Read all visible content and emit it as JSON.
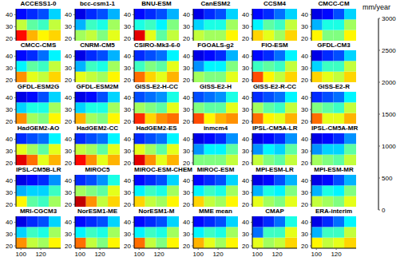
{
  "chart_data": {
    "type": "heatmap",
    "xlim": [
      95,
      140
    ],
    "ylim": [
      18,
      45
    ],
    "xticks": [
      100,
      120
    ],
    "yticks": [
      20,
      30,
      40
    ],
    "x_edges": [
      95,
      106,
      117,
      128,
      140
    ],
    "y_edges": [
      18,
      27,
      36,
      45
    ],
    "colorbar": {
      "label": "mm/year",
      "range": [
        0,
        3000
      ],
      "ticks": [
        0,
        500,
        1000,
        1500,
        2000,
        2500,
        3000
      ]
    },
    "panels": [
      {
        "title": "ACCESS1-0",
        "cells": [
          [
            2600,
            2100,
            1900,
            2000
          ],
          [
            1700,
            1400,
            1300,
            1700
          ],
          [
            400,
            500,
            600,
            1000
          ]
        ]
      },
      {
        "title": "bcc-csm1-1",
        "cells": [
          [
            1600,
            1700,
            1500,
            1800
          ],
          [
            900,
            1300,
            1200,
            1600
          ],
          [
            300,
            500,
            600,
            900
          ]
        ]
      },
      {
        "title": "BNU-ESM",
        "cells": [
          [
            2700,
            1800,
            1400,
            1700
          ],
          [
            1200,
            1300,
            1100,
            1500
          ],
          [
            400,
            500,
            600,
            900
          ]
        ]
      },
      {
        "title": "CanESM2",
        "cells": [
          [
            1700,
            1600,
            1600,
            1900
          ],
          [
            1000,
            1200,
            1200,
            1600
          ],
          [
            300,
            500,
            600,
            1000
          ]
        ]
      },
      {
        "title": "CCSM4",
        "cells": [
          [
            2000,
            1800,
            1600,
            2000
          ],
          [
            1100,
            1400,
            1300,
            1700
          ],
          [
            400,
            500,
            700,
            1000
          ]
        ]
      },
      {
        "title": "CMCC-CM",
        "cells": [
          [
            1900,
            1500,
            1500,
            1900
          ],
          [
            900,
            1200,
            1200,
            1600
          ],
          [
            300,
            400,
            600,
            1000
          ]
        ]
      },
      {
        "title": "CMCC-CMS",
        "cells": [
          [
            2200,
            1800,
            1700,
            2000
          ],
          [
            1100,
            1400,
            1300,
            1700
          ],
          [
            400,
            500,
            700,
            1100
          ]
        ]
      },
      {
        "title": "CNRM-CM5",
        "cells": [
          [
            1800,
            1700,
            1600,
            1900
          ],
          [
            900,
            1300,
            1200,
            1600
          ],
          [
            300,
            500,
            600,
            900
          ]
        ]
      },
      {
        "title": "CSIRO-Mk3-6-0",
        "cells": [
          [
            2300,
            2000,
            1800,
            2100
          ],
          [
            1300,
            1500,
            1400,
            1800
          ],
          [
            500,
            600,
            700,
            1100
          ]
        ]
      },
      {
        "title": "FGOALS-g2",
        "cells": [
          [
            1600,
            1500,
            1500,
            1800
          ],
          [
            800,
            1100,
            1100,
            1500
          ],
          [
            300,
            400,
            500,
            900
          ]
        ]
      },
      {
        "title": "FIO-ESM",
        "cells": [
          [
            2400,
            1900,
            1700,
            2000
          ],
          [
            1300,
            1400,
            1300,
            1700
          ],
          [
            400,
            500,
            700,
            1100
          ]
        ]
      },
      {
        "title": "GFDL-CM3",
        "cells": [
          [
            2000,
            1800,
            1700,
            2000
          ],
          [
            1000,
            1300,
            1300,
            1700
          ],
          [
            300,
            500,
            600,
            1000
          ]
        ]
      },
      {
        "title": "GFDL-ESM2G",
        "cells": [
          [
            2200,
            1600,
            1500,
            1900
          ],
          [
            1000,
            1200,
            1200,
            1600
          ],
          [
            300,
            400,
            600,
            1000
          ]
        ]
      },
      {
        "title": "GFDL-ESM2M",
        "cells": [
          [
            2100,
            1600,
            1500,
            1900
          ],
          [
            1000,
            1200,
            1200,
            1600
          ],
          [
            300,
            400,
            600,
            1000
          ]
        ]
      },
      {
        "title": "GISS-E2-H-CC",
        "cells": [
          [
            2500,
            2000,
            2200,
            2300
          ],
          [
            1600,
            1500,
            1400,
            1800
          ],
          [
            600,
            700,
            800,
            1200
          ]
        ]
      },
      {
        "title": "GISS-E2-H",
        "cells": [
          [
            2400,
            1900,
            2100,
            2200
          ],
          [
            1500,
            1400,
            1400,
            1800
          ],
          [
            600,
            700,
            800,
            1200
          ]
        ]
      },
      {
        "title": "GISS-E2-R-CC",
        "cells": [
          [
            2300,
            1900,
            1800,
            2100
          ],
          [
            1600,
            1400,
            1300,
            1700
          ],
          [
            500,
            600,
            700,
            1100
          ]
        ]
      },
      {
        "title": "GISS-E2-R",
        "cells": [
          [
            2300,
            1800,
            1800,
            2100
          ],
          [
            1500,
            1400,
            1300,
            1700
          ],
          [
            500,
            600,
            700,
            1100
          ]
        ]
      },
      {
        "title": "HadGEM2-AO",
        "cells": [
          [
            2700,
            2300,
            1800,
            2100
          ],
          [
            1800,
            1600,
            1400,
            1800
          ],
          [
            500,
            600,
            700,
            1100
          ]
        ]
      },
      {
        "title": "HadGEM2-CC",
        "cells": [
          [
            2600,
            2200,
            1800,
            2100
          ],
          [
            1700,
            1600,
            1400,
            1800
          ],
          [
            500,
            600,
            700,
            1100
          ]
        ]
      },
      {
        "title": "HadGEM2-ES",
        "cells": [
          [
            2700,
            2200,
            1800,
            2100
          ],
          [
            1800,
            1600,
            1400,
            1800
          ],
          [
            500,
            600,
            700,
            1100
          ]
        ]
      },
      {
        "title": "inmcm4",
        "cells": [
          [
            1500,
            1500,
            1500,
            1700
          ],
          [
            800,
            1100,
            1100,
            1400
          ],
          [
            300,
            400,
            500,
            800
          ]
        ]
      },
      {
        "title": "IPSL-CM5A-LR",
        "cells": [
          [
            1700,
            1500,
            1400,
            1700
          ],
          [
            800,
            1100,
            1000,
            1400
          ],
          [
            300,
            400,
            500,
            800
          ]
        ]
      },
      {
        "title": "IPSL-CM5A-MR",
        "cells": [
          [
            1600,
            1500,
            1400,
            1700
          ],
          [
            800,
            1000,
            1000,
            1400
          ],
          [
            300,
            400,
            500,
            800
          ]
        ]
      },
      {
        "title": "IPSL-CM5B-LR",
        "cells": [
          [
            1900,
            1400,
            1300,
            1600
          ],
          [
            900,
            1000,
            1000,
            1300
          ],
          [
            300,
            400,
            500,
            800
          ]
        ]
      },
      {
        "title": "MIROC5",
        "cells": [
          [
            2800,
            2200,
            1700,
            2000
          ],
          [
            1600,
            1500,
            1400,
            1800
          ],
          [
            500,
            600,
            800,
            1200
          ]
        ]
      },
      {
        "title": "MIROC-ESM-CHEM",
        "cells": [
          [
            2000,
            1700,
            1600,
            1900
          ],
          [
            1100,
            1300,
            1200,
            1600
          ],
          [
            400,
            500,
            600,
            1000
          ]
        ]
      },
      {
        "title": "MIROC-ESM",
        "cells": [
          [
            2000,
            1700,
            1600,
            1900
          ],
          [
            1100,
            1300,
            1200,
            1600
          ],
          [
            400,
            500,
            600,
            1000
          ]
        ]
      },
      {
        "title": "MPI-ESM-LR",
        "cells": [
          [
            1800,
            1600,
            1500,
            1800
          ],
          [
            900,
            1200,
            1100,
            1500
          ],
          [
            300,
            400,
            600,
            900
          ]
        ]
      },
      {
        "title": "MPI-ESM-MR",
        "cells": [
          [
            1700,
            1600,
            1500,
            1800
          ],
          [
            900,
            1200,
            1100,
            1500
          ],
          [
            300,
            400,
            600,
            900
          ]
        ]
      },
      {
        "title": "MRI-CGCM3",
        "cells": [
          [
            2200,
            1700,
            1600,
            1900
          ],
          [
            1000,
            1300,
            1200,
            1600
          ],
          [
            300,
            500,
            600,
            1000
          ]
        ]
      },
      {
        "title": "NorESM1-ME",
        "cells": [
          [
            2300,
            1700,
            1500,
            1900
          ],
          [
            1100,
            1300,
            1200,
            1600
          ],
          [
            400,
            500,
            600,
            1000
          ]
        ]
      },
      {
        "title": "NorESM1-M",
        "cells": [
          [
            2300,
            1700,
            1500,
            1900
          ],
          [
            1100,
            1300,
            1200,
            1600
          ],
          [
            400,
            500,
            600,
            1000
          ]
        ]
      },
      {
        "title": "MME mean",
        "cells": [
          [
            2100,
            1800,
            1600,
            1900
          ],
          [
            1100,
            1300,
            1200,
            1600
          ],
          [
            400,
            500,
            600,
            1000
          ]
        ]
      },
      {
        "title": "CMAP",
        "cells": [
          [
            1800,
            1600,
            1700,
            2000
          ],
          [
            700,
            1300,
            1300,
            1800
          ],
          [
            300,
            500,
            700,
            1200
          ]
        ]
      },
      {
        "title": "ERA-interim",
        "cells": [
          [
            1900,
            1700,
            1800,
            2000
          ],
          [
            900,
            1300,
            1300,
            1700
          ],
          [
            300,
            500,
            700,
            1100
          ]
        ]
      }
    ]
  }
}
